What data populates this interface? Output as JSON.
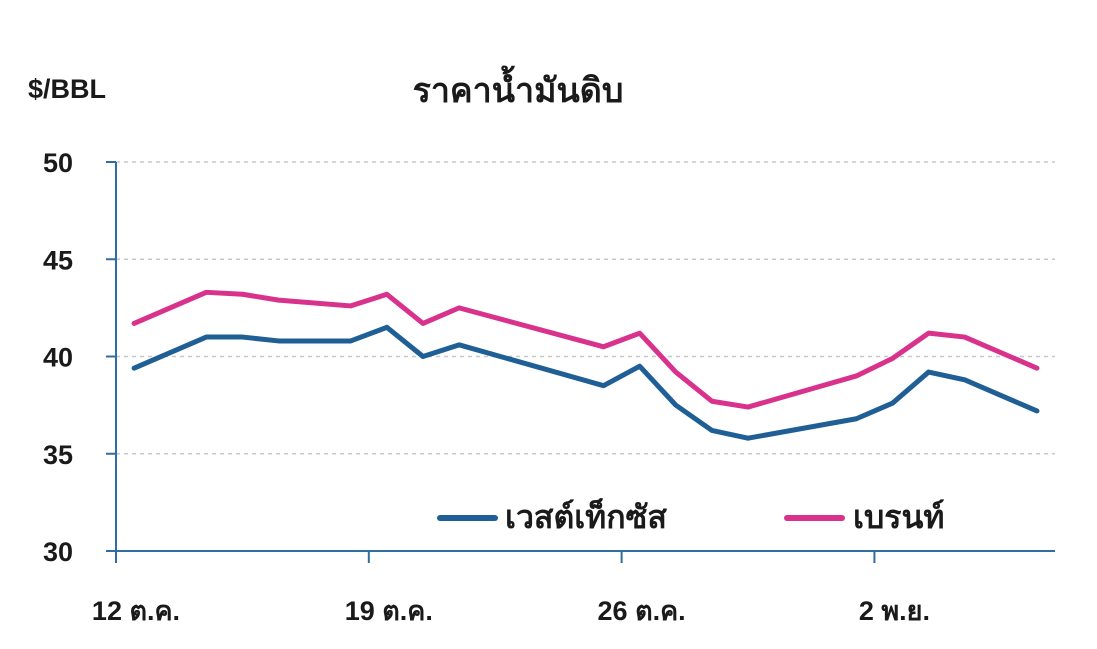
{
  "chart_data": {
    "type": "line",
    "title": "ราคาน้ำมันดิบ",
    "ylabel": "$/BBL",
    "xlabel": "",
    "ylim": [
      30,
      50
    ],
    "yticks": [
      30,
      35,
      40,
      45,
      50
    ],
    "grid": "horizontal-dashed",
    "legend_position": "bottom-right",
    "x_tick_labels": [
      {
        "label": "12 ต.ค.",
        "x": 0
      },
      {
        "label": "19 ต.ค.",
        "x": 7
      },
      {
        "label": "26 ต.ค.",
        "x": 14
      },
      {
        "label": "2 พ.ย.",
        "x": 21
      }
    ],
    "x": [
      0.5,
      2.5,
      3.5,
      4.5,
      6.5,
      7.5,
      8.5,
      9.5,
      13.5,
      14.5,
      15.5,
      16.5,
      17.5,
      20.5,
      21.5,
      22.5,
      23.5,
      25.5
    ],
    "series": [
      {
        "name": "เวสต์เท็กซัส",
        "color": "#1f5f96",
        "values": [
          39.4,
          41.0,
          41.0,
          40.8,
          40.8,
          41.5,
          40.0,
          40.6,
          38.5,
          39.5,
          37.5,
          36.2,
          35.8,
          36.8,
          37.6,
          39.2,
          38.8,
          37.2
        ]
      },
      {
        "name": "เบรนท์",
        "color": "#d9328c",
        "values": [
          41.7,
          43.3,
          43.2,
          42.9,
          42.6,
          43.2,
          41.7,
          42.5,
          40.5,
          41.2,
          39.2,
          37.7,
          37.4,
          39.0,
          39.9,
          41.2,
          41.0,
          39.4
        ]
      }
    ]
  }
}
